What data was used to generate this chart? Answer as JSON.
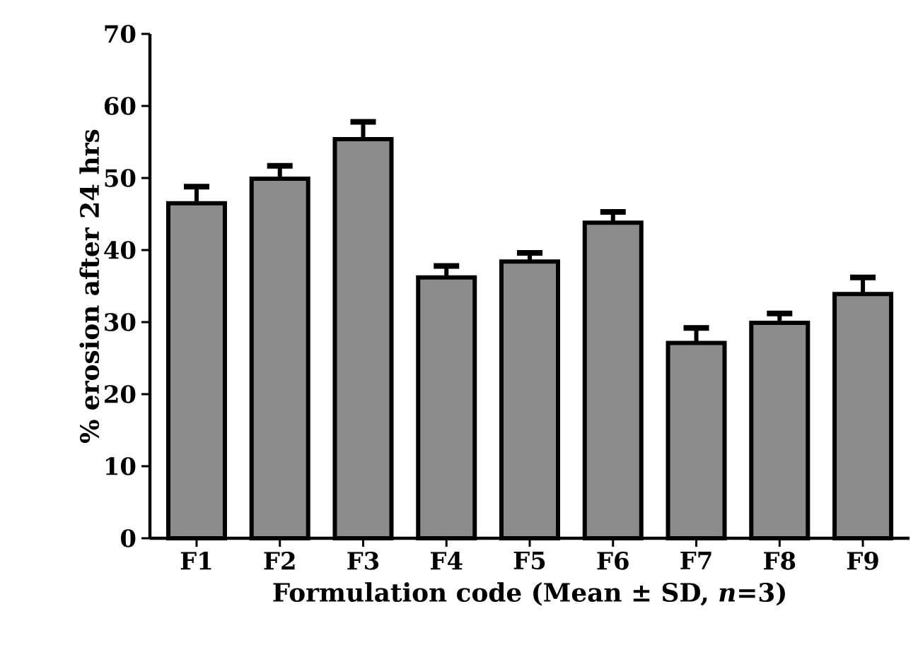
{
  "chart_data": {
    "type": "bar",
    "xlabel": "Formulation code  (Mean ± SD, *n*=3)",
    "ylabel": "% erosion after 24 hrs",
    "categories": [
      "F1",
      "F2",
      "F3",
      "F4",
      "F5",
      "F6",
      "F7",
      "F8",
      "F9"
    ],
    "values": [
      46.5,
      49.9,
      55.4,
      36.2,
      38.4,
      43.8,
      27.1,
      29.9,
      33.9
    ],
    "errors": [
      2.3,
      1.8,
      2.4,
      1.6,
      1.2,
      1.5,
      2.1,
      1.3,
      2.3
    ],
    "color": "#8c8c8c",
    "ylim": [
      0,
      70
    ],
    "yticks": [
      0,
      10,
      20,
      30,
      40,
      50,
      60,
      70
    ],
    "grid": false
  }
}
